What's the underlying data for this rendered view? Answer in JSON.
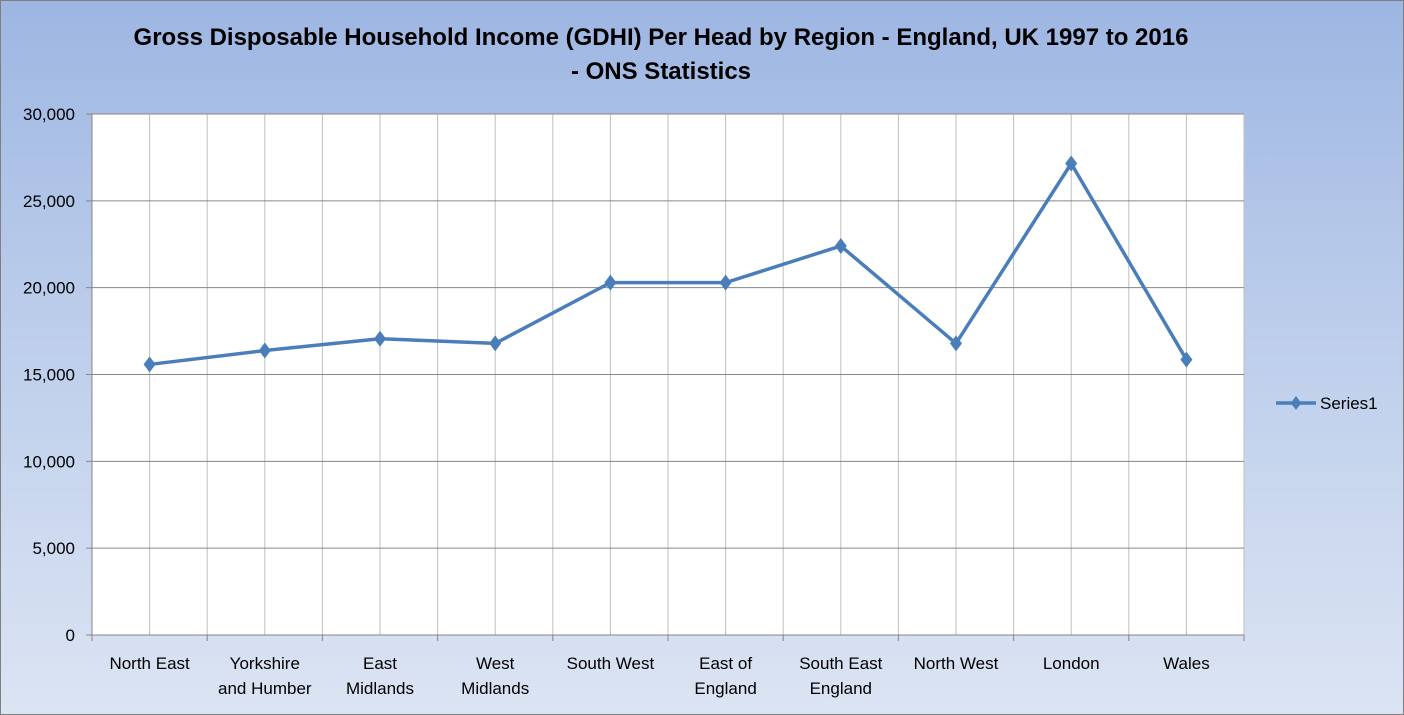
{
  "chart_data": {
    "type": "line",
    "title": "Gross Disposable Household Income (GDHI) Per Head by Region - England, UK 1997 to 2016 - ONS Statistics",
    "title_lines": [
      "Gross Disposable Household Income (GDHI) Per Head by Region - England, UK 1997 to 2016",
      "- ONS Statistics"
    ],
    "categories": [
      [
        "North East"
      ],
      [
        "Yorkshire",
        "and Humber"
      ],
      [
        "East",
        "Midlands"
      ],
      [
        "West",
        "Midlands"
      ],
      [
        "South West"
      ],
      [
        "East of",
        "England"
      ],
      [
        "South East",
        "England"
      ],
      [
        "North West"
      ],
      [
        "London"
      ],
      [
        "Wales"
      ]
    ],
    "series": [
      {
        "name": "Series1",
        "values": [
          15580,
          16380,
          17060,
          16790,
          20290,
          20290,
          22400,
          16790,
          27150,
          15860
        ],
        "color": "#4a7ebb",
        "marker": "diamond"
      }
    ],
    "ylim": [
      0,
      30000
    ],
    "yticks": [
      "0",
      "5,000",
      "10,000",
      "15,000",
      "20,000",
      "25,000",
      "30,000"
    ],
    "ytick_values": [
      0,
      5000,
      10000,
      15000,
      20000,
      25000,
      30000
    ],
    "grid": true,
    "legend": "right"
  }
}
